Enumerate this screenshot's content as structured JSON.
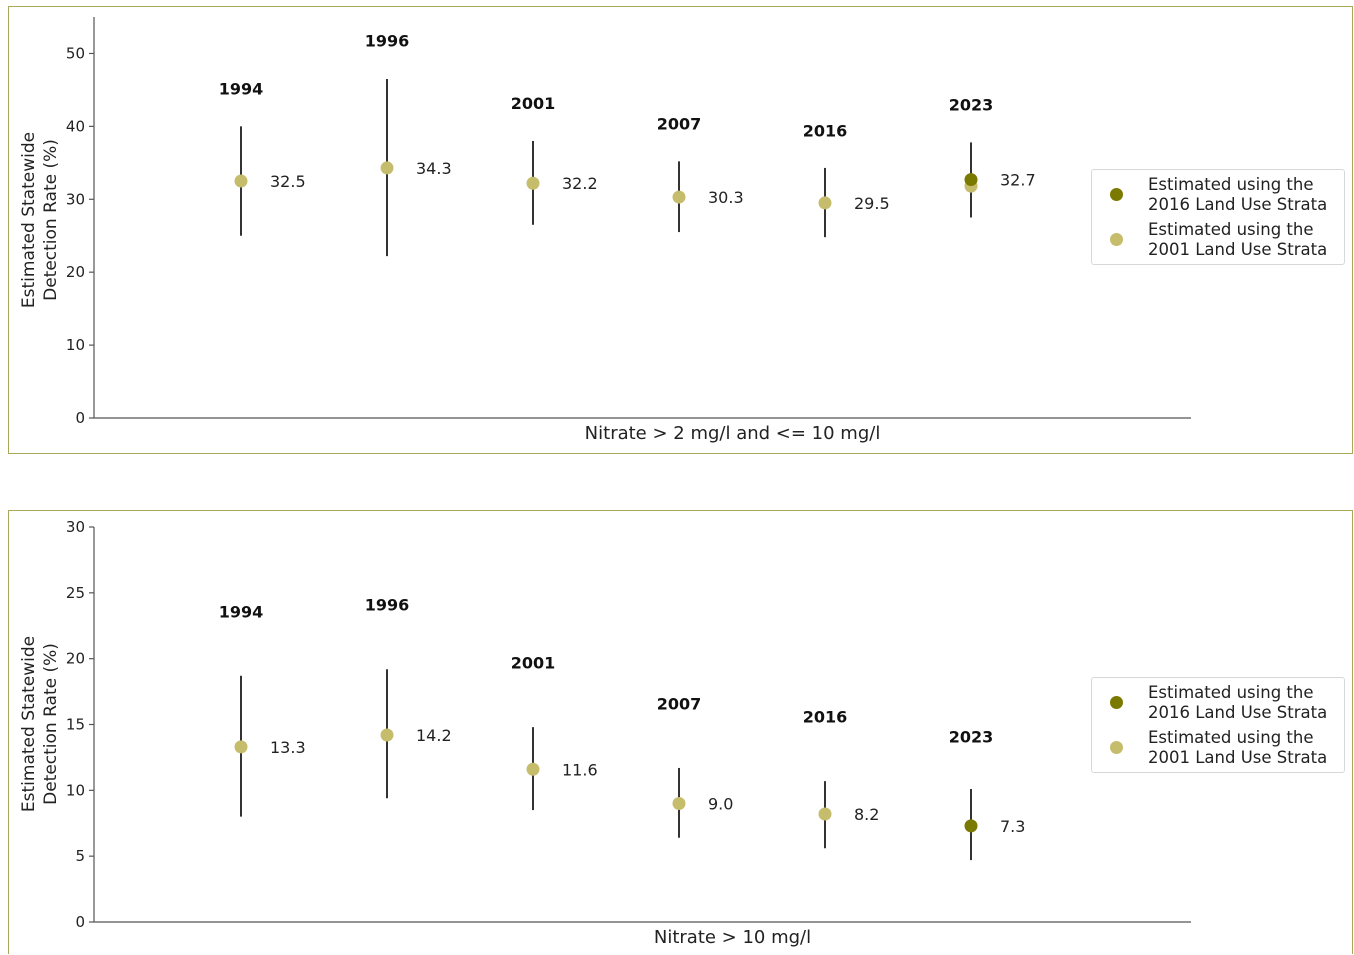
{
  "colors": {
    "strata_2016": "#7a7a00",
    "strata_2001": "#c6bd6c",
    "errorbar": "#333333",
    "frame": "#a8a85a"
  },
  "legend": {
    "item_2016": "Estimated using the\n2016 Land Use Strata",
    "item_2001": "Estimated using the\n2001 Land Use Strata"
  },
  "chart_data": [
    {
      "type": "scatter",
      "ylabel_line1": "Estimated Statewide",
      "ylabel_line2": "Detection Rate (%)",
      "xlabel": "Nitrate > 2 mg/l and <= 10 mg/l",
      "ylim": [
        0,
        55
      ],
      "yticks": [
        0,
        10,
        20,
        30,
        40,
        50
      ],
      "legend_position": "right",
      "points": [
        {
          "year": "1994",
          "value": 32.5,
          "label": "32.5",
          "low": 25.0,
          "high": 40.0,
          "strata": "2001",
          "year_label_y": 45.2
        },
        {
          "year": "1996",
          "value": 34.3,
          "label": "34.3",
          "low": 22.2,
          "high": 46.5,
          "strata": "2001",
          "year_label_y": 51.8
        },
        {
          "year": "2001",
          "value": 32.2,
          "label": "32.2",
          "low": 26.5,
          "high": 38.0,
          "strata": "2001",
          "year_label_y": 43.2
        },
        {
          "year": "2007",
          "value": 30.3,
          "label": "30.3",
          "low": 25.5,
          "high": 35.2,
          "strata": "2001",
          "year_label_y": 40.4
        },
        {
          "year": "2016",
          "value": 29.5,
          "label": "29.5",
          "low": 24.8,
          "high": 34.3,
          "strata": "2001",
          "year_label_y": 39.4
        },
        {
          "year": "2023",
          "value": 32.7,
          "label": "32.7",
          "low": 27.5,
          "high": 37.8,
          "strata": "2016",
          "year_label_y": 43.0,
          "overlay_value": 31.8
        }
      ]
    },
    {
      "type": "scatter",
      "ylabel_line1": "Estimated Statewide",
      "ylabel_line2": "Detection Rate (%)",
      "xlabel": "Nitrate > 10 mg/l",
      "ylim": [
        0,
        30
      ],
      "yticks": [
        0,
        5,
        10,
        15,
        20,
        25,
        30
      ],
      "legend_position": "right",
      "points": [
        {
          "year": "1994",
          "value": 13.3,
          "label": "13.3",
          "low": 8.0,
          "high": 18.7,
          "strata": "2001",
          "year_label_y": 23.6
        },
        {
          "year": "1996",
          "value": 14.2,
          "label": "14.2",
          "low": 9.4,
          "high": 19.2,
          "strata": "2001",
          "year_label_y": 24.1
        },
        {
          "year": "2001",
          "value": 11.6,
          "label": "11.6",
          "low": 8.5,
          "high": 14.8,
          "strata": "2001",
          "year_label_y": 19.7
        },
        {
          "year": "2007",
          "value": 9.0,
          "label": "9.0",
          "low": 6.4,
          "high": 11.7,
          "strata": "2001",
          "year_label_y": 16.6
        },
        {
          "year": "2016",
          "value": 8.2,
          "label": "8.2",
          "low": 5.6,
          "high": 10.7,
          "strata": "2001",
          "year_label_y": 15.6
        },
        {
          "year": "2023",
          "value": 7.3,
          "label": "7.3",
          "low": 4.7,
          "high": 10.1,
          "strata": "2016",
          "year_label_y": 14.1
        }
      ]
    }
  ]
}
